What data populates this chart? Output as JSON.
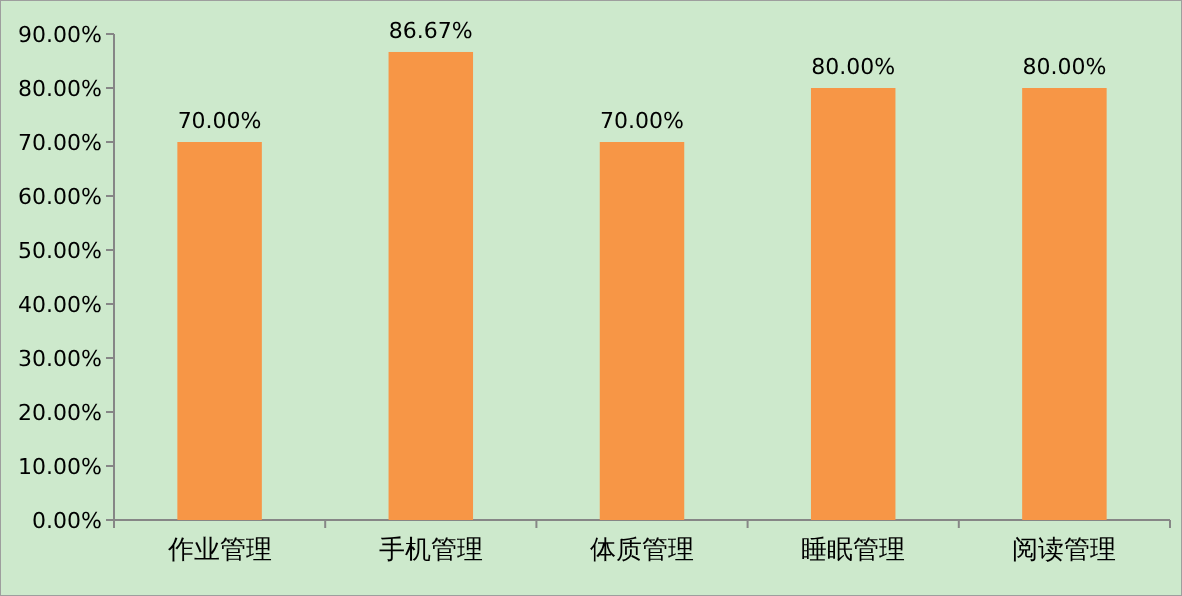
{
  "chart_data": {
    "type": "bar",
    "categories": [
      "作业管理",
      "手机管理",
      "体质管理",
      "睡眠管理",
      "阅读管理"
    ],
    "values": [
      70,
      86.67,
      70,
      80,
      80
    ],
    "value_labels": [
      "70.00%",
      "86.67%",
      "70.00%",
      "80.00%",
      "80.00%"
    ],
    "color": "#f79646",
    "ylim": [
      0,
      90
    ],
    "yticks": [
      {
        "value": 0,
        "label": "0.00%"
      },
      {
        "value": 10,
        "label": "10.00%"
      },
      {
        "value": 20,
        "label": "20.00%"
      },
      {
        "value": 30,
        "label": "30.00%"
      },
      {
        "value": 40,
        "label": "40.00%"
      },
      {
        "value": 50,
        "label": "50.00%"
      },
      {
        "value": 60,
        "label": "60.00%"
      },
      {
        "value": 70,
        "label": "70.00%"
      },
      {
        "value": 80,
        "label": "80.00%"
      },
      {
        "value": 90,
        "label": "90.00%"
      }
    ],
    "grid": false
  }
}
